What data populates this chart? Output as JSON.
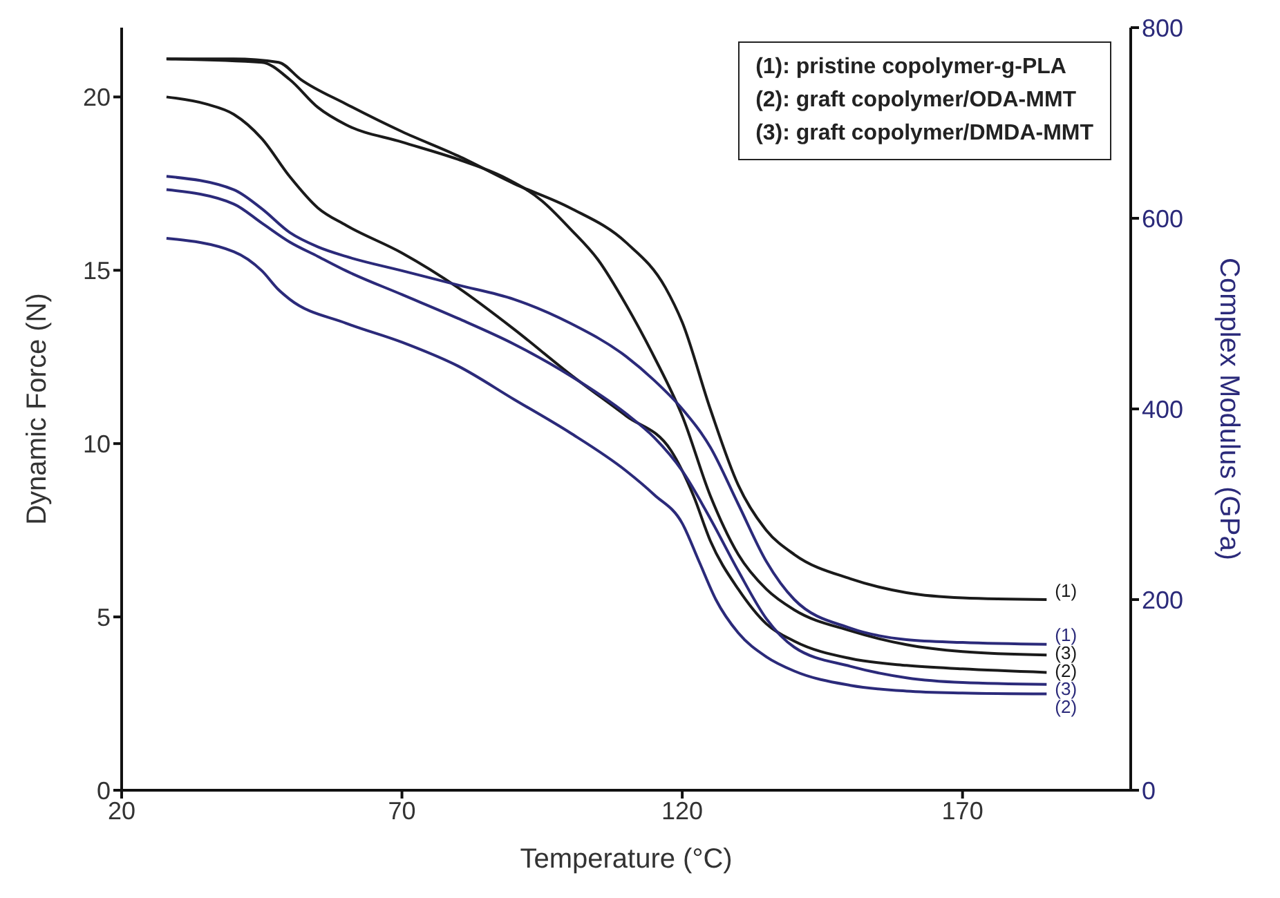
{
  "chart_data": {
    "type": "line",
    "xlabel": "Temperature (°C)",
    "ylabel": "Dynamic Force (N)",
    "y2label": "Complex Modulus (GPa)",
    "xlim": [
      20,
      200
    ],
    "xticks": [
      20,
      70,
      120,
      170
    ],
    "ylim": [
      0,
      22
    ],
    "yticks": [
      0,
      5,
      10,
      15,
      20
    ],
    "y2lim": [
      0,
      800
    ],
    "y2ticks": [
      0,
      200,
      400,
      600,
      800
    ],
    "grid": false,
    "legend": false,
    "marker": "none",
    "line_style": "solid",
    "annotations": [
      "(1): pristine copolymer-g-PLA",
      "(2): graft copolymer/ODA-MMT",
      "(3): graft copolymer/DMDA-MMT"
    ],
    "series": [
      {
        "name": "(1)",
        "color": "#1a1a1a",
        "x": [
          28,
          40,
          48,
          52,
          60,
          70,
          80,
          90,
          100,
          110,
          117,
          120,
          125,
          130,
          135,
          140,
          150,
          160,
          170,
          185
        ],
        "values": [
          21.1,
          21.1,
          21.0,
          20.5,
          19.8,
          19.0,
          18.3,
          17.5,
          16.8,
          15.8,
          14.5,
          13.5,
          11.0,
          8.8,
          7.5,
          6.8,
          6.1,
          5.7,
          5.55,
          5.5
        ]
      },
      {
        "name": "(2)",
        "color": "#1a1a1a",
        "x": [
          28,
          35,
          40,
          45,
          50,
          55,
          60,
          70,
          80,
          90,
          100,
          110,
          118,
          122,
          125,
          130,
          135,
          140,
          150,
          160,
          170,
          185
        ],
        "values": [
          20.0,
          19.8,
          19.5,
          18.8,
          17.7,
          16.8,
          16.3,
          15.5,
          14.5,
          13.3,
          12.0,
          10.8,
          9.8,
          8.5,
          7.2,
          5.8,
          4.8,
          4.3,
          3.8,
          3.6,
          3.5,
          3.4
        ]
      },
      {
        "name": "(3)",
        "color": "#1a1a1a",
        "x": [
          28,
          45,
          50,
          55,
          60,
          70,
          80,
          88,
          95,
          100,
          105,
          110,
          115,
          120,
          125,
          130,
          135,
          140,
          150,
          160,
          170,
          185
        ],
        "values": [
          21.1,
          21.0,
          20.5,
          19.7,
          19.2,
          18.7,
          18.2,
          17.7,
          17.0,
          16.2,
          15.3,
          14.0,
          12.5,
          10.8,
          8.5,
          6.8,
          5.8,
          5.2,
          4.6,
          4.2,
          4.0,
          3.9
        ]
      },
      {
        "name": "(1)",
        "color": "#2b2a7a",
        "axis": "y2",
        "x": [
          28,
          40,
          45,
          50,
          55,
          60,
          70,
          80,
          90,
          100,
          110,
          115,
          120,
          125,
          130,
          135,
          140,
          150,
          160,
          170,
          185
        ],
        "values": [
          644,
          630,
          610,
          585,
          570,
          560,
          545,
          530,
          515,
          490,
          455,
          430,
          400,
          360,
          300,
          240,
          200,
          170,
          158,
          155,
          153
        ]
      },
      {
        "name": "(2)",
        "color": "#2b2a7a",
        "axis": "y2",
        "x": [
          28,
          40,
          45,
          48,
          50,
          60,
          70,
          80,
          90,
          100,
          110,
          115,
          120,
          123,
          126,
          130,
          135,
          140,
          150,
          160,
          170,
          185
        ],
        "values": [
          579,
          565,
          545,
          525,
          515,
          490,
          470,
          445,
          410,
          375,
          335,
          310,
          280,
          240,
          200,
          165,
          140,
          125,
          110,
          104,
          102,
          101
        ]
      },
      {
        "name": "(3)",
        "color": "#2b2a7a",
        "axis": "y2",
        "x": [
          28,
          40,
          45,
          50,
          55,
          60,
          70,
          80,
          90,
          100,
          110,
          115,
          120,
          125,
          130,
          135,
          140,
          150,
          160,
          170,
          185
        ],
        "values": [
          630,
          615,
          595,
          575,
          560,
          545,
          520,
          495,
          468,
          435,
          395,
          370,
          335,
          285,
          230,
          180,
          150,
          130,
          118,
          113,
          111
        ]
      }
    ]
  }
}
